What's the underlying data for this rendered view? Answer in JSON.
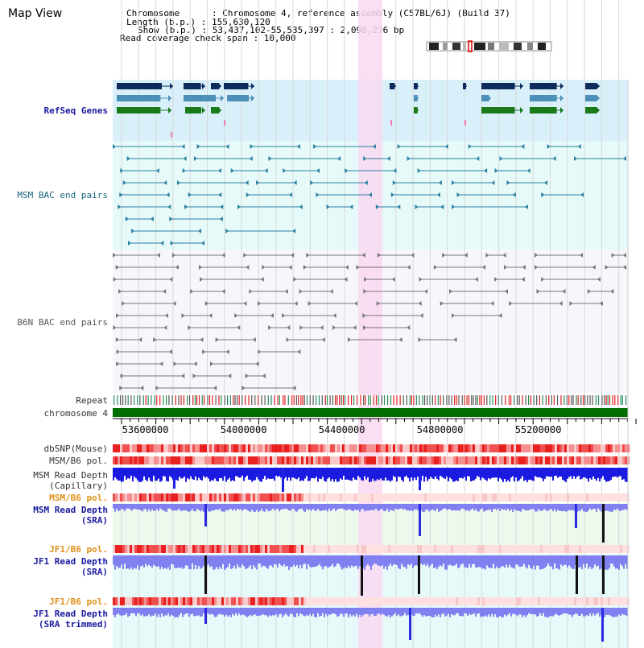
{
  "view_title": "Map View",
  "header": {
    "line1": "Chromosome      : Chromosome 4, reference assembly (C57BL/6J) (Build 37)",
    "line2": "Length (b.p.) : 155,630,120",
    "line3": "Show (b.p.) : 53,437,102-55,535,397 : 2,098,296 bp",
    "line4": "Read coverage check span : 10,000"
  },
  "tracks": {
    "refseq": "RefSeq Genes",
    "msm_bac": "MSM BAC end pairs",
    "b6n_bac": "B6N BAC end pairs",
    "repeat": "Repeat",
    "chromosome": "chromosome 4",
    "dbsnp": "dbSNP(Mouse)",
    "msm_b6_pol_1": "MSM/B6 pol.",
    "msm_depth_cap_1": "MSM Read Depth",
    "msm_depth_cap_2": "(Capillary)",
    "msm_b6_pol_2": "MSM/B6 pol.",
    "msm_depth_sra_1": "MSM Read Depth",
    "msm_depth_sra_2": "(SRA)",
    "jf1_b6_pol_1": "JF1/B6 pol.",
    "jf1_depth_sra_1": "JF1 Read Depth",
    "jf1_depth_sra_2": "(SRA)",
    "jf1_b6_pol_2": "JF1/B6 pol.",
    "jf1_depth_trim_1": "JF1 Read Depth",
    "jf1_depth_trim_2": "(SRA trimmed)"
  },
  "axis": {
    "ticks": [
      "53600000",
      "54000000",
      "54400000",
      "54800000",
      "55200000"
    ],
    "tick_values": [
      53600000,
      54000000,
      54400000,
      54800000,
      55200000
    ],
    "range": [
      53437102,
      55535397
    ]
  },
  "colors": {
    "refseq_bg": "#d9f0fa",
    "msm_bg": "#e6fafa",
    "b6n_bg": "#f7f7fb",
    "highlight": "#f9d9f1",
    "chromosome": "#006e00",
    "gene_dark": "#0d2b5c",
    "gene_mid": "#4a90b8",
    "gene_green": "#1a7a1a",
    "msm_pair": "#2b7fa0",
    "b6n_pair": "#777777",
    "depth_blue": "#1a1ae0",
    "depth_light": "#8080f0",
    "pol_red": "#e83030"
  }
}
